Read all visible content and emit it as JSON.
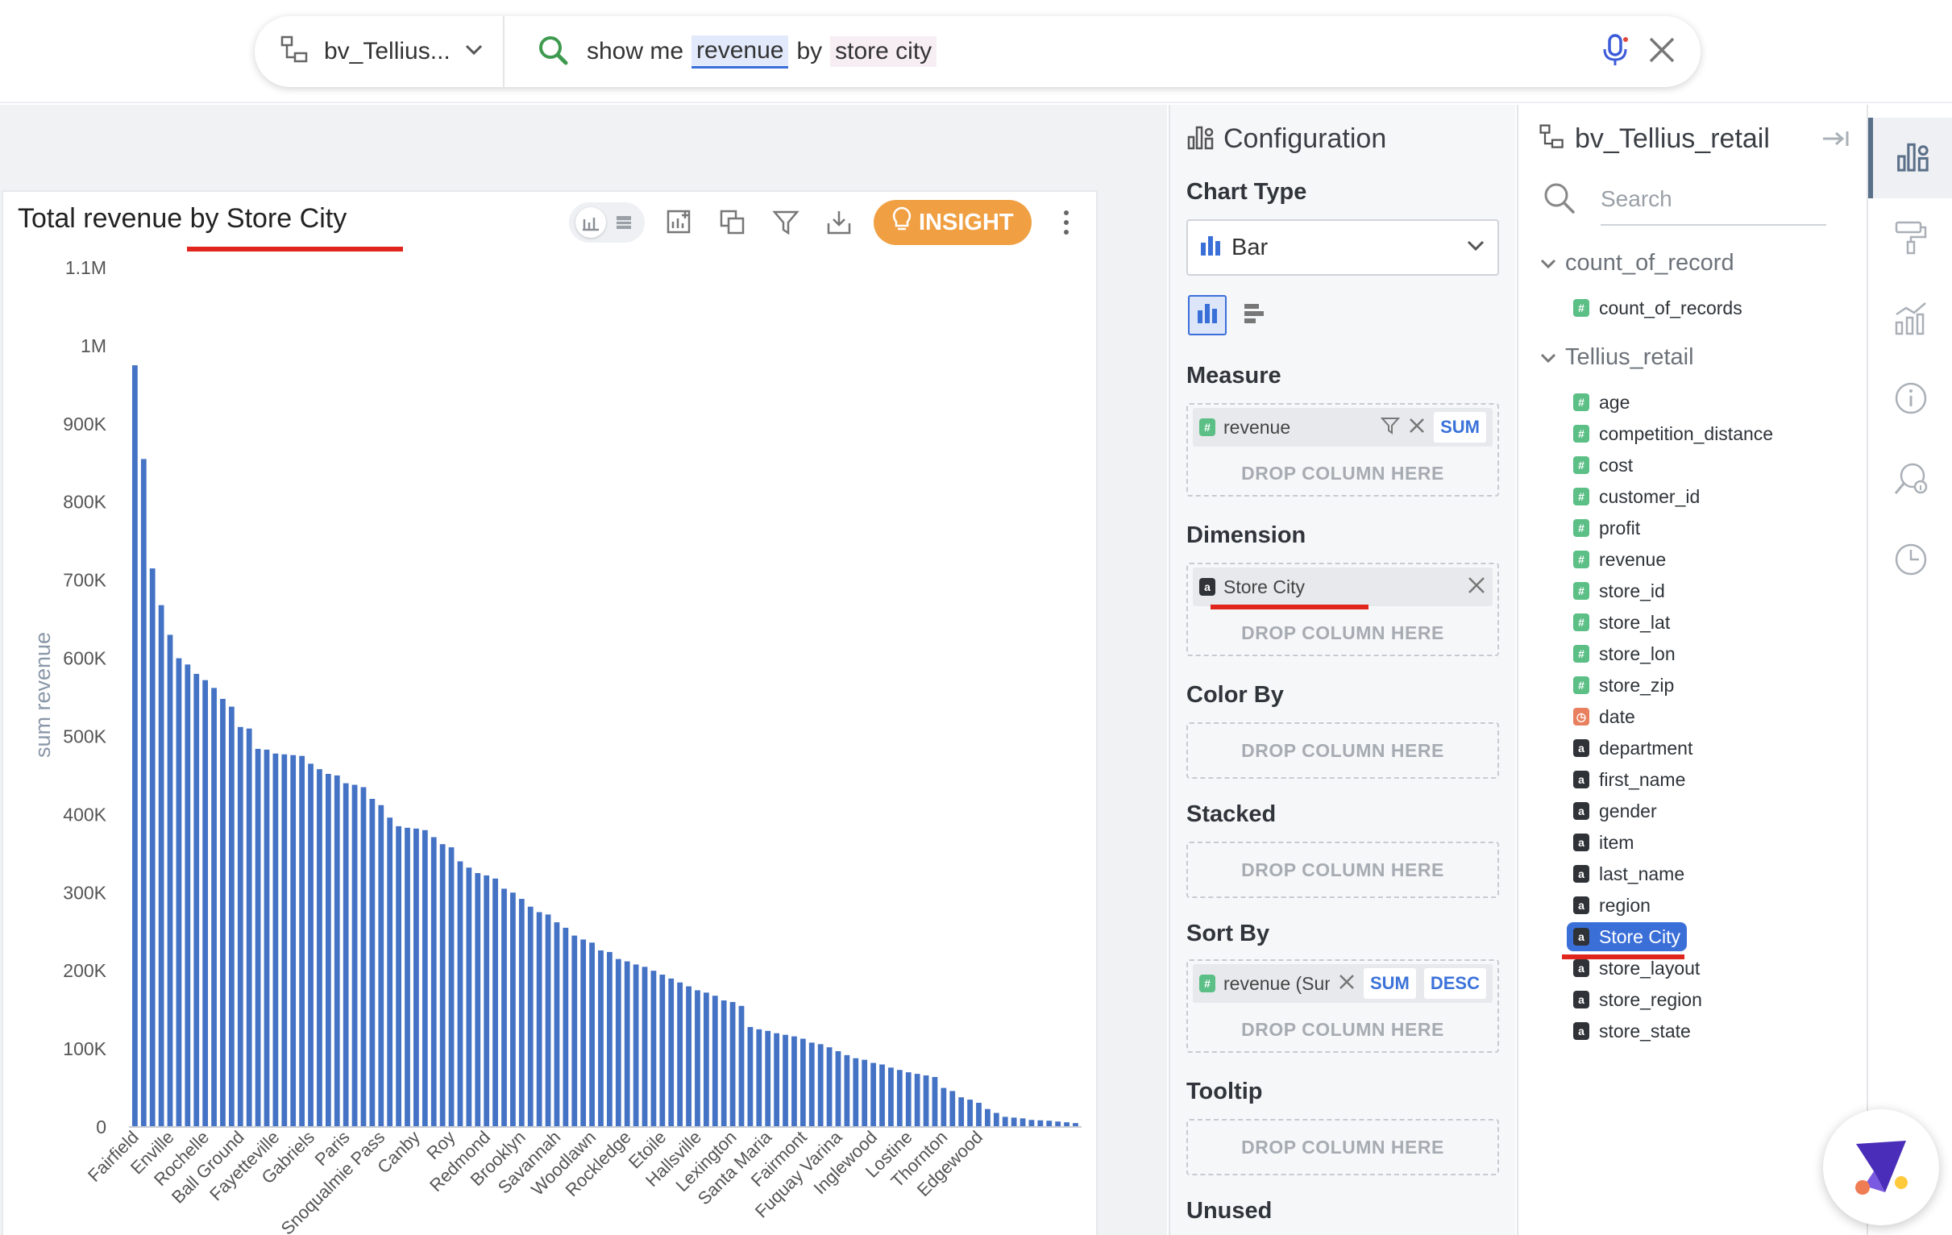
{
  "search": {
    "datasource": "bv_Tellius...",
    "query_prefix": "show me",
    "query_measure": "revenue",
    "query_by": "by",
    "query_dimension": "store city"
  },
  "chart_toolbar": {
    "insight_label": "INSIGHT"
  },
  "colors": {
    "bar": "#4472c4",
    "accent_orange": "#f0a043",
    "selection_blue": "#3b6fd8",
    "annotation_red": "#e0261c"
  },
  "chart_data": {
    "type": "bar",
    "title": "Total revenue by Store City",
    "ylabel": "sum revenue",
    "xlabel": "",
    "ylim": [
      0,
      1100000
    ],
    "yticks": [
      0,
      100000,
      200000,
      300000,
      400000,
      500000,
      600000,
      700000,
      800000,
      900000,
      1000000,
      1100000
    ],
    "ytick_labels": [
      "0",
      "100K",
      "200K",
      "300K",
      "400K",
      "500K",
      "600K",
      "700K",
      "800K",
      "900K",
      "1M",
      "1.1M"
    ],
    "xtick_labels": [
      "Fairfield",
      "Enville",
      "Rochelle",
      "Ball Ground",
      "Fayetteville",
      "Gabriels",
      "Paris",
      "Snoqualmie Pass",
      "Canby",
      "Roy",
      "Redmond",
      "Brooklyn",
      "Savannah",
      "Woodlawn",
      "Rockledge",
      "Etoile",
      "Hallsville",
      "Lexington",
      "Santa Maria",
      "Fairmont",
      "Fuquay Varina",
      "Inglewood",
      "Lostine",
      "Thornton",
      "Edgewood"
    ],
    "xtick_every": 4,
    "grid": false,
    "legend": "none",
    "values": [
      975000,
      855000,
      715000,
      668000,
      630000,
      600000,
      592000,
      580000,
      572000,
      562000,
      548000,
      538000,
      512000,
      510000,
      484000,
      483000,
      478000,
      477000,
      476000,
      475000,
      465000,
      458000,
      452000,
      450000,
      440000,
      438000,
      435000,
      420000,
      412000,
      396000,
      385000,
      383000,
      382000,
      380000,
      371000,
      362000,
      358000,
      340000,
      332000,
      325000,
      322000,
      318000,
      305000,
      300000,
      292000,
      282000,
      275000,
      272000,
      262000,
      255000,
      245000,
      240000,
      236000,
      226000,
      224000,
      215000,
      212000,
      208000,
      205000,
      200000,
      195000,
      190000,
      185000,
      180000,
      175000,
      172000,
      168000,
      162000,
      160000,
      155000,
      128000,
      125000,
      123000,
      120000,
      118000,
      116000,
      113000,
      108000,
      106000,
      102000,
      97000,
      92000,
      88000,
      86000,
      82000,
      80000,
      76000,
      73000,
      70000,
      68000,
      66000,
      64000,
      50000,
      46000,
      38000,
      35000,
      31000,
      23000,
      18000,
      13000,
      12000,
      11000,
      9000,
      8500,
      8000,
      7000,
      6000,
      5000
    ]
  },
  "config": {
    "title": "Configuration",
    "chart_type_label": "Chart Type",
    "chart_type_value": "Bar",
    "measure_label": "Measure",
    "measure_pill": "revenue",
    "measure_agg": "SUM",
    "dimension_label": "Dimension",
    "dimension_pill": "Store City",
    "color_by_label": "Color By",
    "stacked_label": "Stacked",
    "sort_by_label": "Sort By",
    "sort_pill": "revenue (Sum)",
    "sort_agg": "SUM",
    "sort_dir": "DESC",
    "tooltip_label": "Tooltip",
    "unused_label": "Unused",
    "drop_text": "DROP COLUMN HERE"
  },
  "columns": {
    "title": "bv_Tellius_retail",
    "search_placeholder": "Search",
    "groups": [
      {
        "name": "count_of_record",
        "items": [
          {
            "name": "count_of_records",
            "type": "num"
          }
        ]
      },
      {
        "name": "Tellius_retail",
        "items": [
          {
            "name": "age",
            "type": "num"
          },
          {
            "name": "competition_distance",
            "type": "num"
          },
          {
            "name": "cost",
            "type": "num"
          },
          {
            "name": "customer_id",
            "type": "num"
          },
          {
            "name": "profit",
            "type": "num"
          },
          {
            "name": "revenue",
            "type": "num"
          },
          {
            "name": "store_id",
            "type": "num"
          },
          {
            "name": "store_lat",
            "type": "num"
          },
          {
            "name": "store_lon",
            "type": "num"
          },
          {
            "name": "store_zip",
            "type": "num"
          },
          {
            "name": "date",
            "type": "date"
          },
          {
            "name": "department",
            "type": "str"
          },
          {
            "name": "first_name",
            "type": "str"
          },
          {
            "name": "gender",
            "type": "str"
          },
          {
            "name": "item",
            "type": "str"
          },
          {
            "name": "last_name",
            "type": "str"
          },
          {
            "name": "region",
            "type": "str"
          },
          {
            "name": "Store City",
            "type": "str"
          },
          {
            "name": "store_layout",
            "type": "str"
          },
          {
            "name": "store_region",
            "type": "str"
          },
          {
            "name": "store_state",
            "type": "str"
          }
        ]
      }
    ]
  },
  "icons": {
    "rail": [
      "chart-config-icon",
      "paint-roller-icon",
      "chart-growth-icon",
      "info-icon",
      "search-insight-icon",
      "history-icon"
    ]
  }
}
